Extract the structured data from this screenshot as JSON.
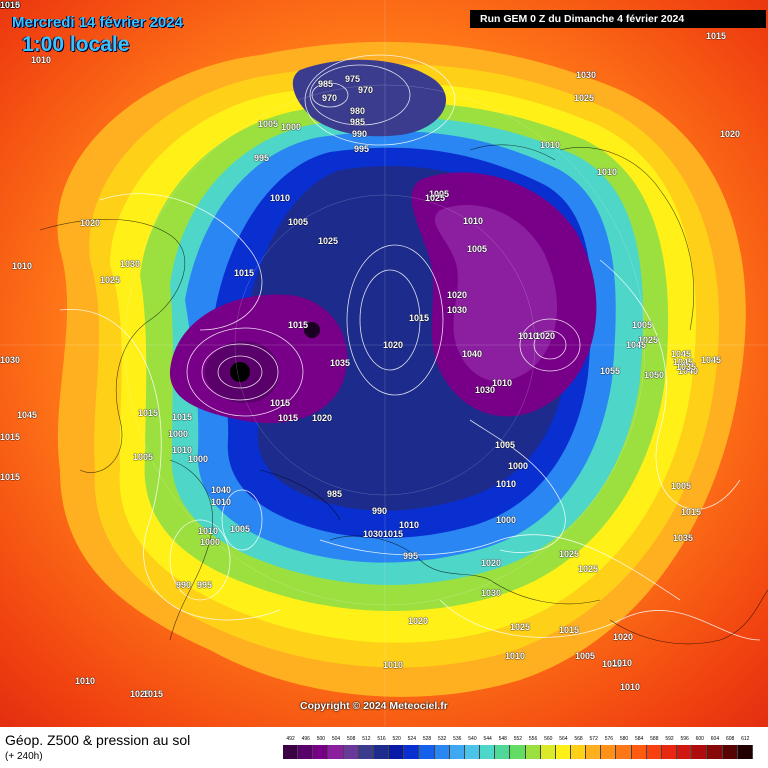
{
  "header": {
    "date_title": "Mercredi 14 février 2024",
    "time_title": "1:00 locale",
    "run_banner": "Run GEM 0 Z du Dimanche 4 février 2024"
  },
  "copyright": "Copyright © 2024 Meteociel.fr",
  "footer": {
    "field_title": "Géop. Z500 & pression au sol",
    "forecast_hours": "(+ 240h)"
  },
  "legend": {
    "ticks": [
      "492",
      "496",
      "500",
      "504",
      "508",
      "512",
      "516",
      "520",
      "524",
      "528",
      "532",
      "536",
      "540",
      "544",
      "548",
      "552",
      "556",
      "560",
      "564",
      "568",
      "572",
      "576",
      "580",
      "584",
      "588",
      "592",
      "596",
      "600",
      "604",
      "608",
      "612"
    ],
    "colors": [
      "#3d0045",
      "#5a006a",
      "#780088",
      "#8b1fa0",
      "#6a3a9a",
      "#3b3c8e",
      "#1c2b8c",
      "#0a1aa8",
      "#0a2fd0",
      "#1560ea",
      "#2a86f2",
      "#3fa8f0",
      "#4cc4e8",
      "#4ed6c8",
      "#50d898",
      "#62dc62",
      "#9ce040",
      "#d8ea28",
      "#fff018",
      "#ffd018",
      "#ffb020",
      "#ff9018",
      "#ff7818",
      "#ff5a10",
      "#f84010",
      "#e82810",
      "#d01810",
      "#b00c0c",
      "#880808",
      "#580404",
      "#200000"
    ]
  },
  "pressure_labels": [
    {
      "text": "1015",
      "pos": "top-right"
    },
    {
      "text": "1010",
      "pos": "top-left"
    },
    {
      "text": "985"
    },
    {
      "text": "975"
    },
    {
      "text": "970"
    },
    {
      "text": "970"
    },
    {
      "text": "980"
    },
    {
      "text": "985"
    },
    {
      "text": "990"
    },
    {
      "text": "995"
    },
    {
      "text": "1005"
    },
    {
      "text": "1000"
    },
    {
      "text": "995"
    },
    {
      "text": "1030"
    },
    {
      "text": "1025"
    },
    {
      "text": "1020"
    },
    {
      "text": "1010"
    },
    {
      "text": "1010"
    },
    {
      "text": "1020"
    },
    {
      "text": "1010"
    },
    {
      "text": "1030"
    },
    {
      "text": "1025"
    },
    {
      "text": "1010"
    },
    {
      "text": "1005"
    },
    {
      "text": "1025"
    },
    {
      "text": "1015"
    },
    {
      "text": "1005"
    },
    {
      "text": "1010"
    },
    {
      "text": "1005"
    },
    {
      "text": "1020"
    },
    {
      "text": "1030"
    },
    {
      "text": "1015"
    },
    {
      "text": "1010"
    },
    {
      "text": "1015"
    },
    {
      "text": "1020"
    },
    {
      "text": "1035"
    },
    {
      "text": "1040"
    },
    {
      "text": "1030"
    },
    {
      "text": "1025"
    },
    {
      "text": "1020"
    },
    {
      "text": "1010"
    },
    {
      "text": "1005"
    },
    {
      "text": "1025"
    },
    {
      "text": "1045"
    },
    {
      "text": "1045"
    },
    {
      "text": "1045"
    },
    {
      "text": "1040"
    },
    {
      "text": "1045"
    },
    {
      "text": "1035"
    },
    {
      "text": "1055"
    },
    {
      "text": "1050"
    },
    {
      "text": "1030"
    },
    {
      "text": "1045"
    },
    {
      "text": "1015"
    },
    {
      "text": "1015"
    },
    {
      "text": "1015"
    },
    {
      "text": "1015"
    },
    {
      "text": "1000"
    },
    {
      "text": "1005"
    },
    {
      "text": "1010"
    },
    {
      "text": "1000"
    },
    {
      "text": "1015"
    },
    {
      "text": "1020"
    },
    {
      "text": "1015"
    },
    {
      "text": "1040"
    },
    {
      "text": "1010"
    },
    {
      "text": "1010"
    },
    {
      "text": "1005"
    },
    {
      "text": "1000"
    },
    {
      "text": "990"
    },
    {
      "text": "995"
    },
    {
      "text": "985"
    },
    {
      "text": "990"
    },
    {
      "text": "1030"
    },
    {
      "text": "1015"
    },
    {
      "text": "1010"
    },
    {
      "text": "995"
    },
    {
      "text": "1005"
    },
    {
      "text": "1000"
    },
    {
      "text": "1010"
    },
    {
      "text": "1000"
    },
    {
      "text": "1005"
    },
    {
      "text": "1015"
    },
    {
      "text": "1035"
    },
    {
      "text": "1025"
    },
    {
      "text": "1025"
    },
    {
      "text": "1020"
    },
    {
      "text": "1030"
    },
    {
      "text": "1025"
    },
    {
      "text": "1020"
    },
    {
      "text": "1015"
    },
    {
      "text": "1020"
    },
    {
      "text": "1010"
    },
    {
      "text": "1010"
    },
    {
      "text": "1005"
    },
    {
      "text": "1015"
    },
    {
      "text": "1010"
    },
    {
      "text": "1010"
    },
    {
      "text": "1025"
    },
    {
      "text": "1015"
    },
    {
      "text": "1010"
    },
    {
      "text": "1010"
    },
    {
      "text": "1015"
    },
    {
      "text": "1010"
    },
    {
      "text": "1015"
    }
  ]
}
